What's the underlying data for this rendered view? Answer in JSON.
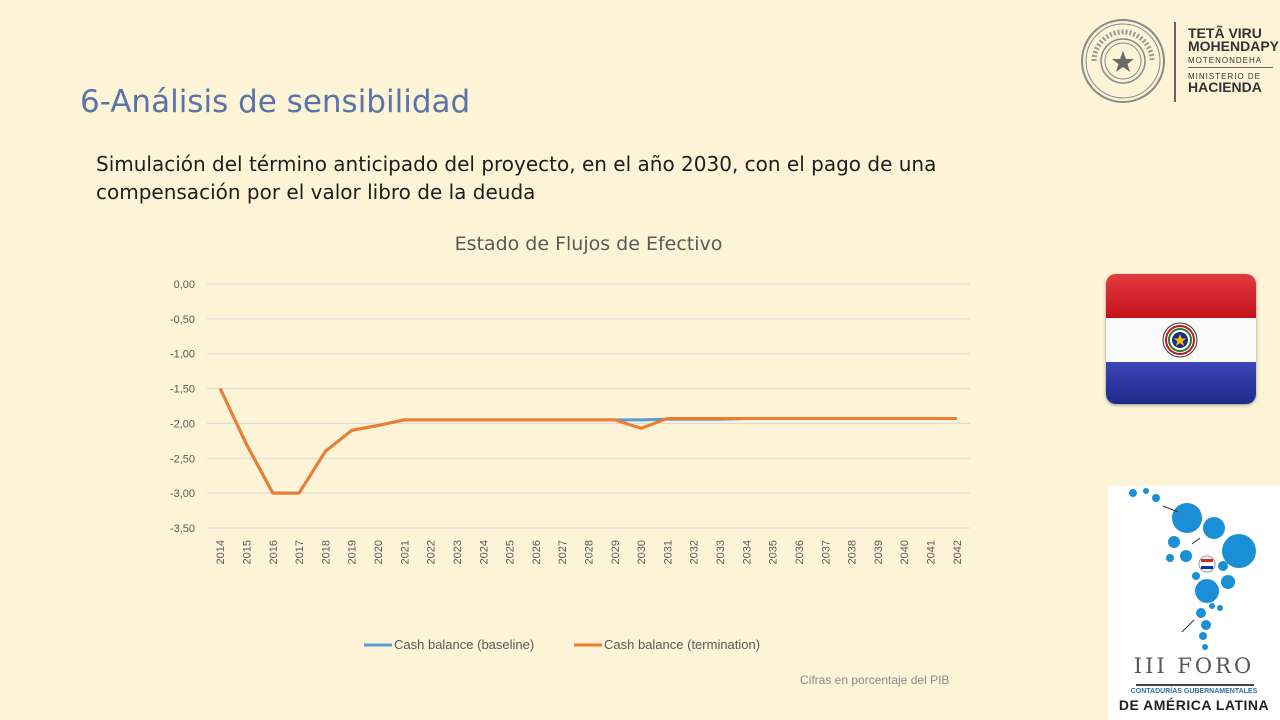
{
  "slide": {
    "title": "6-Análisis de sensibilidad",
    "subtitle": "Simulación del término anticipado del proyecto, en el año 2030, con el pago de una compensación por el valor libro de la deuda",
    "footnote": "Cifras en porcentaje del PIB"
  },
  "logo": {
    "line1": "TETÃ VIRU",
    "line2": "MOHENDAPY",
    "line3": "MOTENONDEHA",
    "line4": "MINISTERIO DE",
    "line5": "HACIENDA",
    "seal_text": "REPÚBLICA DEL PARAGUAY"
  },
  "foro": {
    "title": "III FORO",
    "sub": "CONTADURÍAS GUBERNAMENTALES",
    "sub2": "DE AMÉRICA LATINA"
  },
  "flag": {
    "colors": [
      "#d52b1e",
      "#ffffff",
      "#0038a8"
    ]
  },
  "colors": {
    "baseline": "#5b9bd5",
    "termination": "#ed7d31"
  },
  "chart_data": {
    "type": "line",
    "title": "Estado de Flujos de Efectivo",
    "xlabel": "",
    "ylabel": "",
    "x": [
      "2014",
      "2015",
      "2016",
      "2017",
      "2018",
      "2019",
      "2020",
      "2021",
      "2022",
      "2023",
      "2024",
      "2025",
      "2026",
      "2027",
      "2028",
      "2029",
      "2030",
      "2031",
      "2032",
      "2033",
      "2034",
      "2035",
      "2036",
      "2037",
      "2038",
      "2039",
      "2040",
      "2041",
      "2042"
    ],
    "ylim": [
      -3.5,
      0
    ],
    "yticks": [
      0,
      -0.5,
      -1,
      -1.5,
      -2,
      -2.5,
      -3,
      -3.5
    ],
    "ytick_labels": [
      "0,00",
      "-0,50",
      "-1,00",
      "-1,50",
      "-2,00",
      "-2,50",
      "-3,00",
      "-3,50"
    ],
    "grid": true,
    "legend": "bottom",
    "series": [
      {
        "name": "Cash balance (baseline)",
        "color": "#5b9bd5",
        "values": [
          -1.5,
          -2.3,
          -3.0,
          -3.0,
          -2.4,
          -2.1,
          -2.03,
          -1.95,
          -1.95,
          -1.95,
          -1.95,
          -1.95,
          -1.95,
          -1.95,
          -1.95,
          -1.95,
          -1.95,
          -1.94,
          -1.94,
          -1.94,
          -1.93,
          -1.93,
          -1.93,
          -1.93,
          -1.93,
          -1.93,
          -1.93,
          -1.93,
          -1.93
        ]
      },
      {
        "name": "Cash balance (termination)",
        "color": "#ed7d31",
        "values": [
          -1.5,
          -2.3,
          -3.0,
          -3.0,
          -2.4,
          -2.1,
          -2.03,
          -1.95,
          -1.95,
          -1.95,
          -1.95,
          -1.95,
          -1.95,
          -1.95,
          -1.95,
          -1.95,
          -2.07,
          -1.93,
          -1.93,
          -1.93,
          -1.93,
          -1.93,
          -1.93,
          -1.93,
          -1.93,
          -1.93,
          -1.93,
          -1.93,
          -1.93
        ]
      }
    ]
  }
}
